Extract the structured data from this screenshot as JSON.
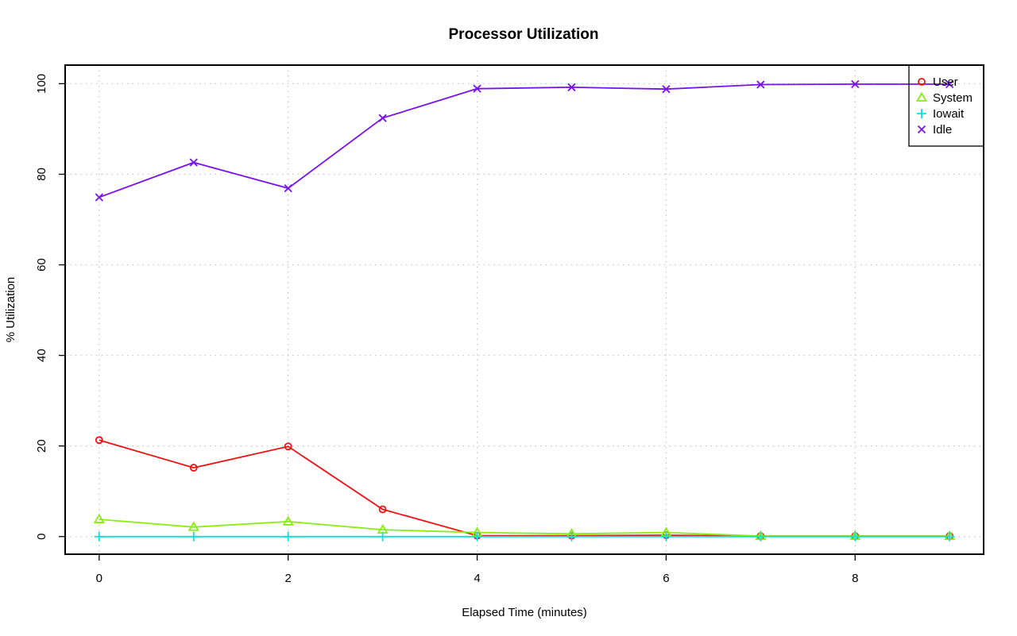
{
  "chart_data": {
    "type": "line",
    "title": "Processor Utilization",
    "xlabel": "Elapsed Time (minutes)",
    "ylabel": "% Utilization",
    "x": [
      0,
      1,
      2,
      3,
      4,
      5,
      6,
      7,
      8,
      9
    ],
    "xlim": [
      -0.36,
      9.36
    ],
    "ylim": [
      -3.9,
      104.1
    ],
    "x_ticks": [
      0,
      2,
      4,
      6,
      8
    ],
    "y_ticks": [
      0,
      20,
      40,
      60,
      80,
      100
    ],
    "grid": true,
    "legend_position": "top-right",
    "series": [
      {
        "name": "User",
        "color": "#ee1111",
        "marker": "circle",
        "values": [
          21.3,
          15.2,
          19.9,
          6.0,
          0.2,
          0.2,
          0.3,
          0.1,
          0.1,
          0.1
        ]
      },
      {
        "name": "System",
        "color": "#88ee11",
        "marker": "triangle",
        "values": [
          3.8,
          2.1,
          3.3,
          1.5,
          0.9,
          0.6,
          0.9,
          0.1,
          0.1,
          0.1
        ]
      },
      {
        "name": "Iowait",
        "color": "#11dddd",
        "marker": "plus",
        "values": [
          0.0,
          0.0,
          0.0,
          0.0,
          0.0,
          0.0,
          0.0,
          0.0,
          0.0,
          0.0
        ]
      },
      {
        "name": "Idle",
        "color": "#7711ee",
        "marker": "cross",
        "values": [
          74.9,
          82.6,
          76.9,
          92.4,
          98.9,
          99.2,
          98.8,
          99.8,
          99.9,
          99.9
        ]
      }
    ]
  }
}
